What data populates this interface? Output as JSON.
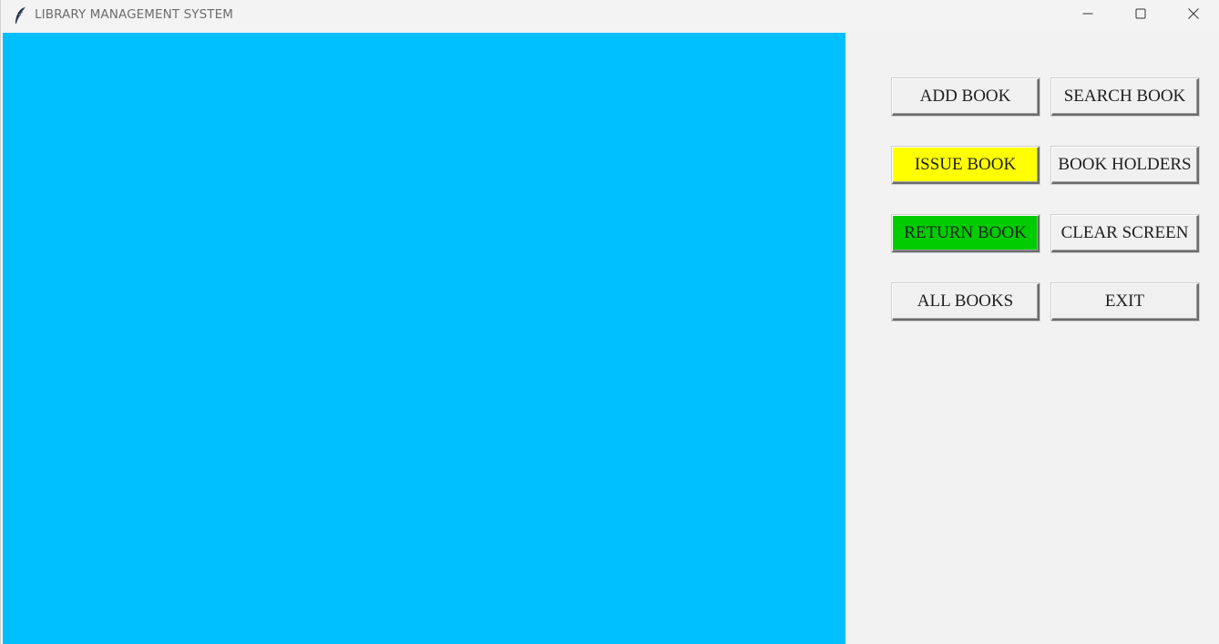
{
  "window": {
    "title": "LIBRARY MANAGEMENT SYSTEM",
    "icon": "feather-icon",
    "controls": {
      "minimize_icon": "minimize-icon",
      "maximize_icon": "maximize-icon",
      "close_icon": "close-icon"
    }
  },
  "canvas": {
    "background": "#00bfff"
  },
  "buttons": {
    "add_book": {
      "label": "ADD BOOK",
      "bg": "#f0f0f0"
    },
    "search_book": {
      "label": "SEARCH BOOK",
      "bg": "#f0f0f0"
    },
    "issue_book": {
      "label": "ISSUE BOOK",
      "bg": "#ffff00"
    },
    "book_holders": {
      "label": "BOOK HOLDERS",
      "bg": "#f0f0f0"
    },
    "return_book": {
      "label": "RETURN BOOK",
      "bg": "#00cc00"
    },
    "clear_screen": {
      "label": "CLEAR SCREEN",
      "bg": "#f0f0f0"
    },
    "all_books": {
      "label": "ALL BOOKS",
      "bg": "#f0f0f0"
    },
    "exit": {
      "label": "EXIT",
      "bg": "#f0f0f0"
    }
  }
}
